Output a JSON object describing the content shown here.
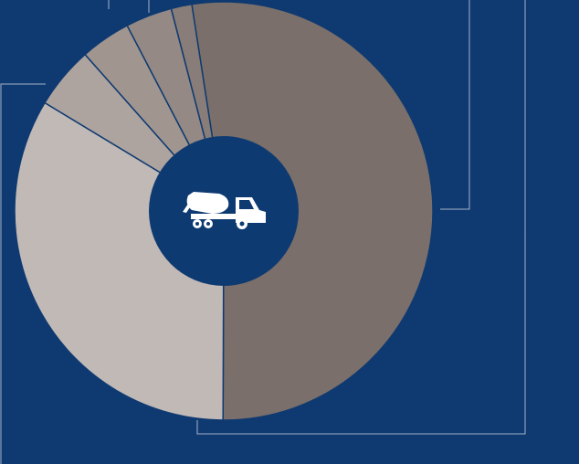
{
  "chart_data": {
    "type": "donut",
    "categories": [
      null,
      null,
      null,
      null,
      null,
      null
    ],
    "values": [
      52.5,
      33.6,
      4.8,
      3.9,
      3.6,
      1.6
    ],
    "colors": [
      "#7a6f6a",
      "#c1b9b6",
      "#aea49f",
      "#a0958f",
      "#948984",
      "#887d78"
    ]
  }
}
